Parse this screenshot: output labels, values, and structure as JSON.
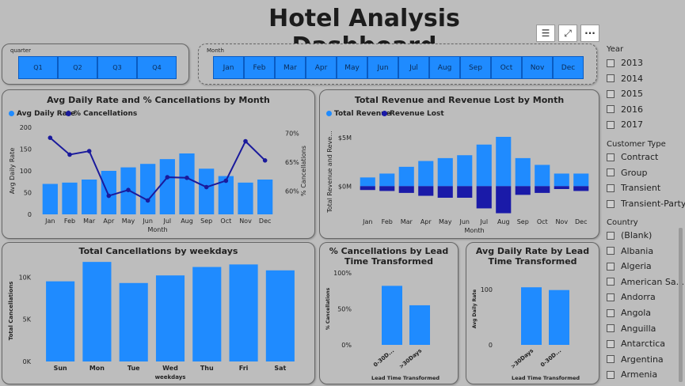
{
  "dashboard": {
    "title": "Hotel Analysis Dashboard"
  },
  "colors": {
    "bar": "#1f8bff",
    "line": "#1a1a9c",
    "lost": "#1a1aa8",
    "panel": "#bdbdbd"
  },
  "toolbar": {
    "icons": [
      "filter-icon",
      "expand-icon",
      "more-options-icon"
    ],
    "more_label": "···",
    "filter_label": "☰",
    "expand_label": "⤢"
  },
  "quarter_slicer": {
    "label": "quarter",
    "items": [
      "Q1",
      "Q2",
      "Q3",
      "Q4"
    ]
  },
  "month_slicer": {
    "label": "Month",
    "items": [
      "Jan",
      "Feb",
      "Mar",
      "Apr",
      "May",
      "Jun",
      "Jul",
      "Aug",
      "Sep",
      "Oct",
      "Nov",
      "Dec"
    ]
  },
  "year_slicer": {
    "label": "Year",
    "items": [
      "2013",
      "2014",
      "2015",
      "2016",
      "2017"
    ]
  },
  "customer_type_slicer": {
    "label": "Customer Type",
    "items": [
      "Contract",
      "Group",
      "Transient",
      "Transient-Party"
    ]
  },
  "country_slicer": {
    "label": "Country",
    "items": [
      "(Blank)",
      "Albania",
      "Algeria",
      "American Sa...",
      "Andorra",
      "Angola",
      "Anguilla",
      "Antarctica",
      "Argentina",
      "Armenia"
    ]
  },
  "charts": {
    "adr_cancel": {
      "title": "Avg Daily Rate and % Cancellations by Month",
      "legend": [
        "Avg Daily Rate",
        "% Cancellations"
      ],
      "ylabel": "Avg Daily Rate",
      "y2label": "% Cancellations",
      "xlabel": "Month",
      "yticks": [
        "200",
        "150",
        "100",
        "50",
        "0"
      ],
      "y2ticks": [
        "70%",
        "65%",
        "60%"
      ]
    },
    "revenue": {
      "title": "Total Revenue and Revenue Lost by Month",
      "legend": [
        "Total Revenue",
        "Revenue Lost"
      ],
      "ylabel": "Total Revenue and Reve...",
      "xlabel": "Month",
      "yticks": [
        "$5M",
        "$0M"
      ]
    },
    "weekdays": {
      "title": "Total Cancellations by weekdays",
      "ylabel": "Total Cancellations",
      "xlabel": "weekdays",
      "yticks": [
        "10K",
        "5K",
        "0K"
      ]
    },
    "lead_cancel": {
      "title": "% Cancellations by Lead Time Transformed",
      "ylabel": "% Cancellations",
      "xlabel": "Lead Time Transformed",
      "yticks": [
        "100%",
        "50%",
        "0%"
      ]
    },
    "lead_adr": {
      "title": "Avg Daily Rate by Lead Time Transformed",
      "ylabel": "Avg Daily Rate",
      "xlabel": "Lead Time Transformed",
      "yticks": [
        "100",
        "0"
      ]
    }
  },
  "chart_data": [
    {
      "type": "bar",
      "title": "Avg Daily Rate and % Cancellations by Month",
      "categories": [
        "Jan",
        "Feb",
        "Mar",
        "Apr",
        "May",
        "Jun",
        "Jul",
        "Aug",
        "Sep",
        "Oct",
        "Nov",
        "Dec"
      ],
      "series": [
        {
          "name": "Avg Daily Rate",
          "type": "bar",
          "axis": "left",
          "values": [
            70,
            73,
            80,
            100,
            108,
            116,
            127,
            140,
            105,
            88,
            73,
            80
          ]
        },
        {
          "name": "% Cancellations",
          "type": "line",
          "axis": "right",
          "values": [
            69.2,
            66.3,
            66.9,
            59.2,
            60.2,
            58.4,
            62.4,
            62.3,
            60.7,
            61.8,
            68.6,
            65.3
          ]
        }
      ],
      "xlabel": "Month",
      "ylabel": "Avg Daily Rate",
      "y2label": "% Cancellations",
      "ylim": [
        0,
        200
      ],
      "y2lim": [
        56,
        71
      ],
      "legend": "top-left"
    },
    {
      "type": "bar",
      "title": "Total Revenue and Revenue Lost by Month",
      "categories": [
        "Jan",
        "Feb",
        "Mar",
        "Apr",
        "May",
        "Jun",
        "Jul",
        "Aug",
        "Sep",
        "Oct",
        "Nov",
        "Dec"
      ],
      "series": [
        {
          "name": "Total Revenue",
          "values": [
            0.9,
            1.3,
            2.0,
            2.6,
            2.9,
            3.2,
            4.3,
            5.1,
            2.9,
            2.2,
            1.3,
            1.3
          ]
        },
        {
          "name": "Revenue Lost",
          "values": [
            -0.4,
            -0.5,
            -0.7,
            -1.0,
            -1.2,
            -1.2,
            -2.3,
            -2.8,
            -0.9,
            -0.7,
            -0.3,
            -0.5
          ]
        }
      ],
      "xlabel": "Month",
      "ylabel": "Total Revenue and Reve...",
      "ylim": [
        -3,
        6
      ],
      "legend": "top-left"
    },
    {
      "type": "bar",
      "title": "Total Cancellations by weekdays",
      "categories": [
        "Sun",
        "Mon",
        "Tue",
        "Wed",
        "Thu",
        "Fri",
        "Sat"
      ],
      "values": [
        9500,
        11800,
        9300,
        10200,
        11200,
        11500,
        10800
      ],
      "xlabel": "weekdays",
      "ylabel": "Total Cancellations",
      "ylim": [
        0,
        12000
      ]
    },
    {
      "type": "bar",
      "title": "% Cancellations by Lead Time Transformed",
      "categories": [
        "0-30D...",
        ">30Days"
      ],
      "values": [
        82,
        55
      ],
      "xlabel": "Lead Time Transformed",
      "ylabel": "% Cancellations",
      "ylim": [
        0,
        100
      ]
    },
    {
      "type": "bar",
      "title": "Avg Daily Rate by Lead Time Transformed",
      "categories": [
        ">30Days",
        "0-30D..."
      ],
      "values": [
        104,
        99
      ],
      "xlabel": "Lead Time Transformed",
      "ylabel": "Avg Daily Rate",
      "ylim": [
        0,
        130
      ]
    }
  ]
}
